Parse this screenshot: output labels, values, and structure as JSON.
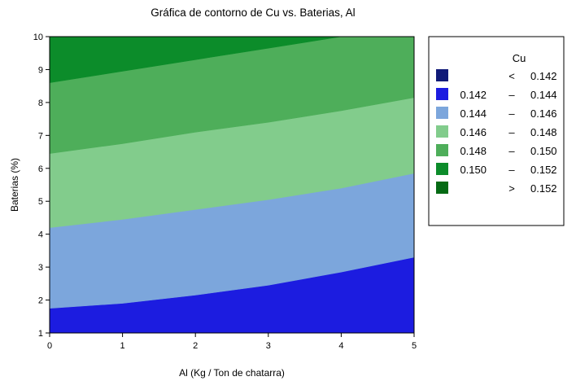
{
  "chart_data": {
    "type": "contour",
    "title": "Gráfica de contorno de Cu vs. Baterias, Al",
    "xlabel": "Al  (Kg / Ton de chatarra)",
    "ylabel": "Baterias (%)",
    "xlim": [
      0,
      5
    ],
    "ylim": [
      1,
      10
    ],
    "x_ticks": [
      "0",
      "1",
      "2",
      "3",
      "4",
      "5"
    ],
    "y_ticks": [
      "1",
      "2",
      "3",
      "4",
      "5",
      "6",
      "7",
      "8",
      "9",
      "10"
    ],
    "legend": {
      "title": "Cu",
      "placement": "right",
      "entries": [
        {
          "low": "",
          "sep": "<",
          "high": "0.142",
          "color": "#101a78"
        },
        {
          "low": "0.142",
          "sep": "–",
          "high": "0.144",
          "color": "#1c1ce0"
        },
        {
          "low": "0.144",
          "sep": "–",
          "high": "0.146",
          "color": "#7ca6dc"
        },
        {
          "low": "0.146",
          "sep": "–",
          "high": "0.148",
          "color": "#82cc8c"
        },
        {
          "low": "0.148",
          "sep": "–",
          "high": "0.150",
          "color": "#4eae5a"
        },
        {
          "low": "0.150",
          "sep": "–",
          "high": "0.152",
          "color": "#0c8c2a"
        },
        {
          "low": "",
          "sep": ">",
          "high": "0.152",
          "color": "#056a14"
        }
      ]
    },
    "contour_lines": [
      {
        "level": "0.142",
        "x": [
          0,
          1,
          2,
          3,
          4,
          5
        ],
        "y": [
          1.0,
          1.0,
          1.0,
          1.0,
          1.0,
          1.0
        ]
      },
      {
        "level": "0.144",
        "x": [
          0,
          1,
          2,
          3,
          4,
          5
        ],
        "y": [
          1.75,
          1.9,
          2.15,
          2.45,
          2.85,
          3.3
        ]
      },
      {
        "level": "0.146",
        "x": [
          0,
          1,
          2,
          3,
          4,
          5
        ],
        "y": [
          4.2,
          4.45,
          4.75,
          5.05,
          5.4,
          5.85
        ]
      },
      {
        "level": "0.148",
        "x": [
          0,
          1,
          2,
          3,
          4,
          5
        ],
        "y": [
          6.45,
          6.75,
          7.1,
          7.4,
          7.75,
          8.15
        ]
      },
      {
        "level": "0.150",
        "x": [
          0,
          1,
          2,
          3,
          4,
          5
        ],
        "y": [
          8.6,
          8.95,
          9.3,
          9.65,
          10.0,
          10.35
        ]
      }
    ],
    "grid": false
  }
}
